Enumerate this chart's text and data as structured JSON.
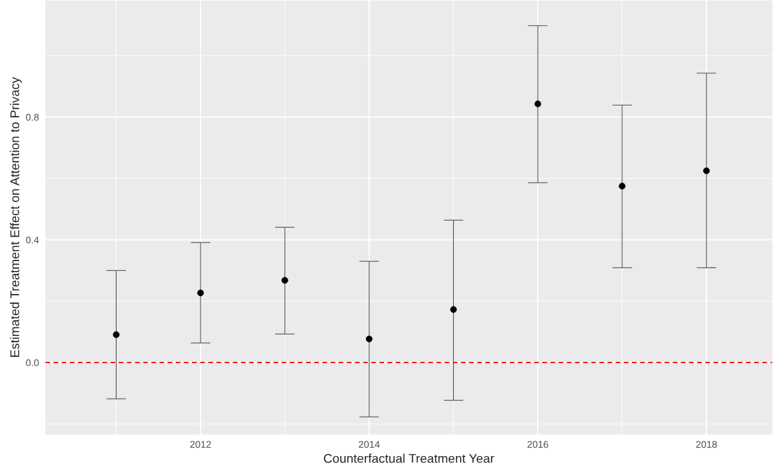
{
  "chart_data": {
    "type": "scatter",
    "xlabel": "Counterfactual Treatment Year",
    "ylabel": "Estimated Treatment Effect on Attention to Privacy",
    "x": [
      2011,
      2012,
      2013,
      2014,
      2015,
      2016,
      2017,
      2018
    ],
    "series": [
      {
        "color": "#000000",
        "values": [
          0.091,
          0.227,
          0.268,
          0.077,
          0.173,
          0.843,
          0.575,
          0.625
        ],
        "errors": [
          [
            -0.118,
            0.3
          ],
          [
            0.064,
            0.391
          ],
          [
            0.093,
            0.441
          ],
          [
            -0.177,
            0.33
          ],
          [
            -0.123,
            0.464
          ],
          [
            0.586,
            1.098
          ],
          [
            0.309,
            0.839
          ],
          [
            0.309,
            0.943
          ]
        ]
      }
    ],
    "xlim": [
      2010.16,
      2018.78
    ],
    "ylim": [
      -0.234,
      1.18
    ],
    "xticks": [
      2012,
      2014,
      2016,
      2018
    ],
    "yticks": [
      {
        "value": 0,
        "label": "0.0"
      },
      {
        "value": 0.4,
        "label": "0.4"
      },
      {
        "value": 0.8,
        "label": "0.8"
      }
    ],
    "ref_lines": [
      {
        "axis": "y",
        "value": 0,
        "color": "#ff0000",
        "line_style": "dashed"
      }
    ],
    "grid": true,
    "marker": "circle",
    "legend": false
  }
}
